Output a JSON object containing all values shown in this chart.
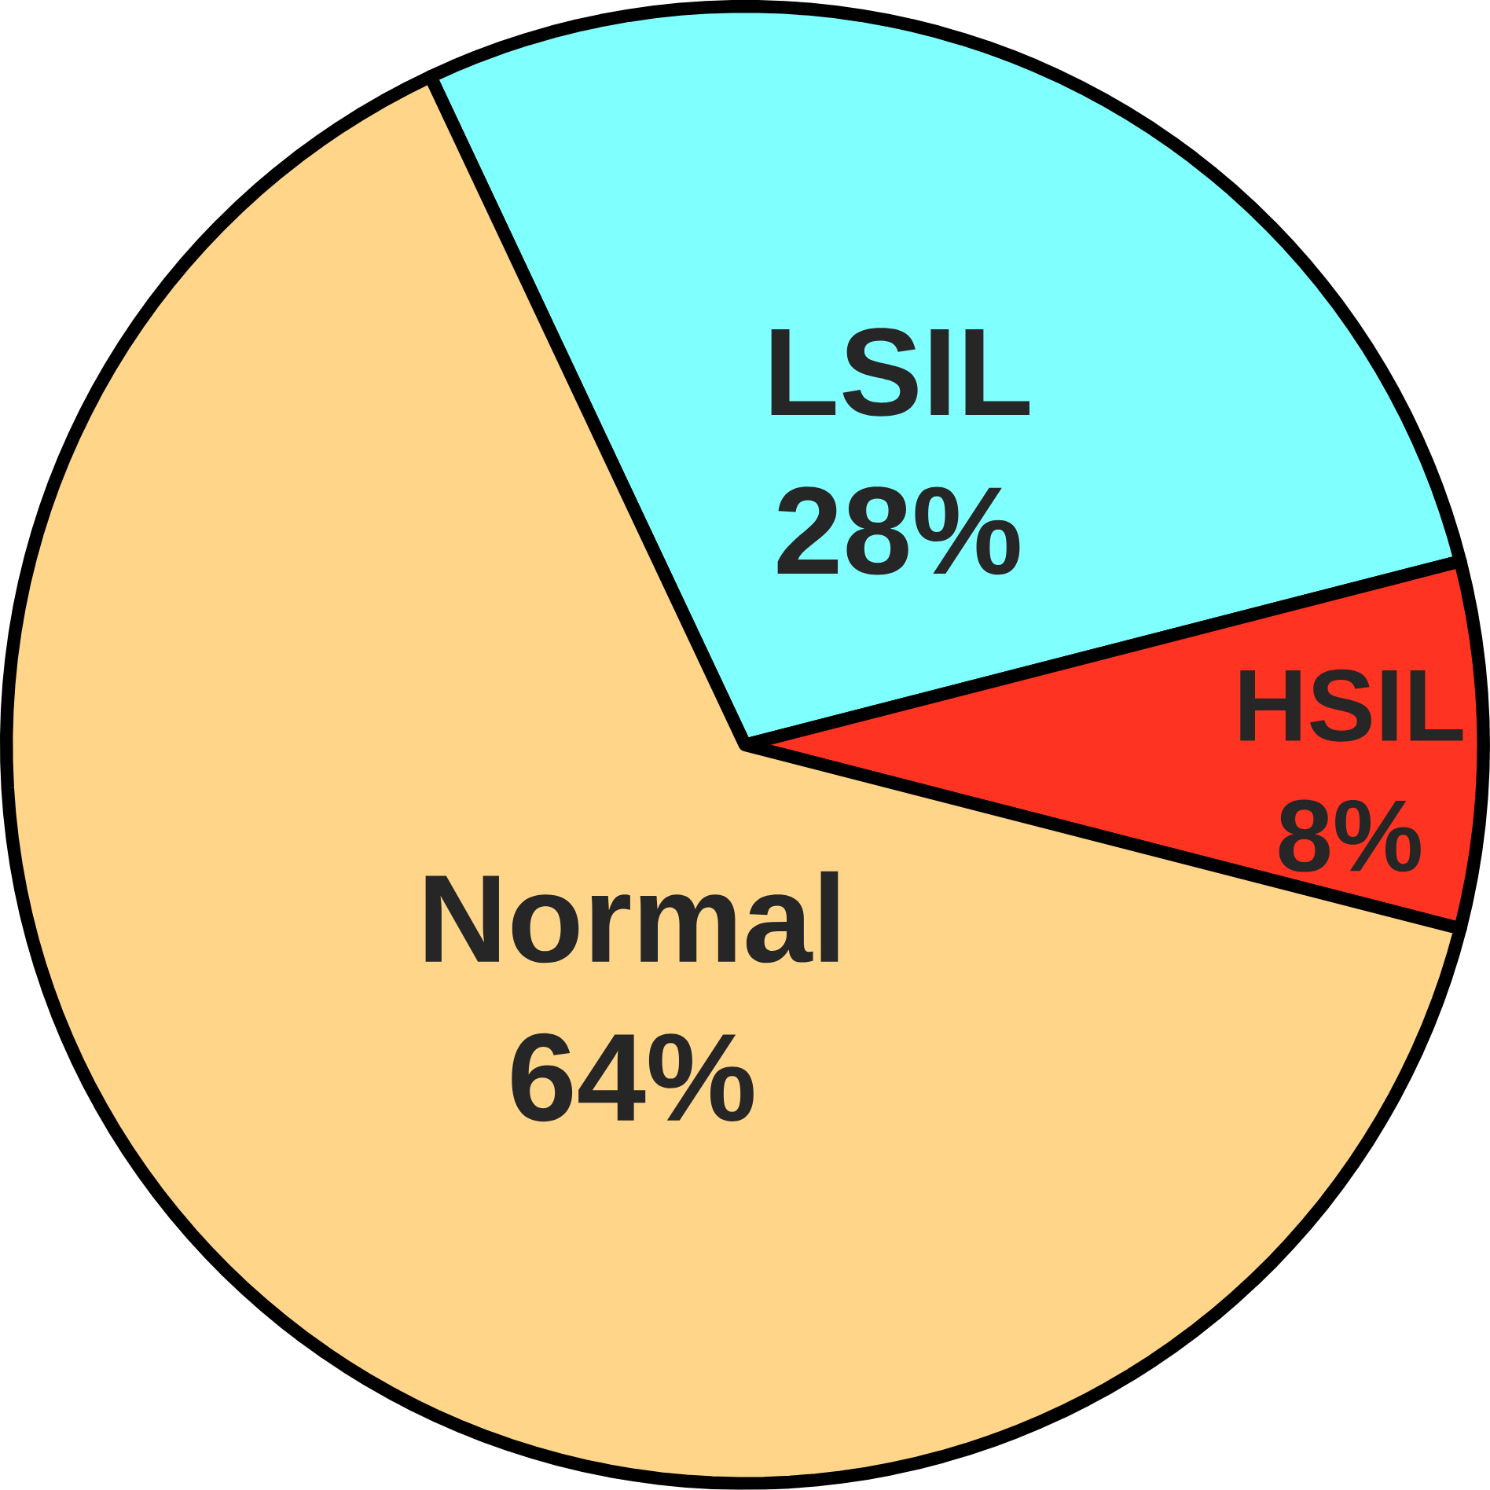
{
  "chart_data": {
    "type": "pie",
    "categories": [
      "LSIL",
      "HSIL",
      "Normal"
    ],
    "values": [
      28,
      8,
      64
    ],
    "colors": [
      "#80ffff",
      "#ff3322",
      "#ffd58a"
    ],
    "value_labels": [
      "28%",
      "8%",
      "64%"
    ]
  }
}
